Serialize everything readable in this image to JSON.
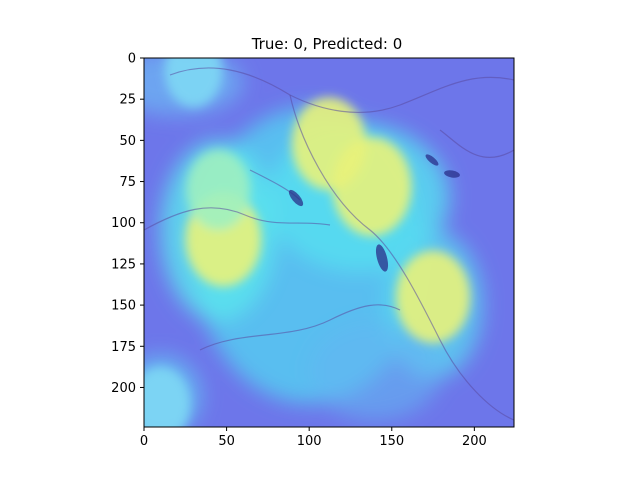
{
  "chart_data": {
    "type": "heatmap",
    "title": "True: 0, Predicted: 0",
    "xlabel": "",
    "ylabel": "",
    "image_size": [
      224,
      224
    ],
    "xlim": [
      0,
      224
    ],
    "ylim": [
      224,
      0
    ],
    "x_ticks": [
      "0",
      "50",
      "100",
      "150",
      "200"
    ],
    "x_tick_values": [
      0,
      50,
      100,
      150,
      200
    ],
    "y_ticks": [
      "0",
      "25",
      "50",
      "75",
      "100",
      "125",
      "150",
      "175",
      "200"
    ],
    "y_tick_values": [
      0,
      25,
      50,
      75,
      100,
      125,
      150,
      175,
      200
    ],
    "colormap": "jet",
    "overlay": "Grad-CAM heatmap over microscopy image of cells",
    "hotspots": [
      {
        "x": 138,
        "y": 78,
        "intensity": 1.0
      },
      {
        "x": 112,
        "y": 52,
        "intensity": 0.85
      },
      {
        "x": 48,
        "y": 110,
        "intensity": 0.9
      },
      {
        "x": 175,
        "y": 145,
        "intensity": 0.85
      },
      {
        "x": 45,
        "y": 80,
        "intensity": 0.55
      },
      {
        "x": 10,
        "y": 210,
        "intensity": 0.4
      },
      {
        "x": 30,
        "y": 8,
        "intensity": 0.35
      }
    ],
    "grid": false,
    "legend": "none"
  }
}
